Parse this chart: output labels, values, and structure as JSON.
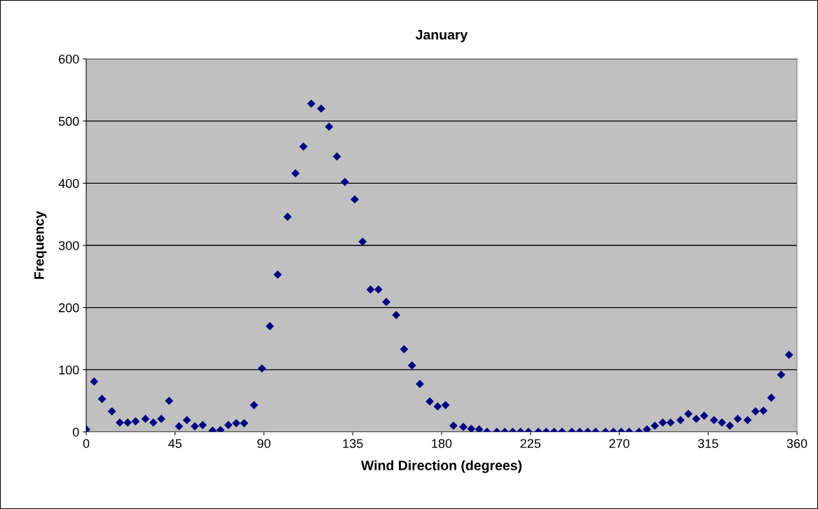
{
  "chart_data": {
    "type": "scatter",
    "title": "January",
    "xlabel": "Wind Direction (degrees)",
    "ylabel": "Frequency",
    "x": [
      0,
      4,
      8,
      13,
      17,
      21,
      25,
      30,
      34,
      38,
      42,
      47,
      51,
      55,
      59,
      64,
      68,
      72,
      76,
      80,
      85,
      89,
      93,
      97,
      102,
      106,
      110,
      114,
      119,
      123,
      127,
      131,
      136,
      140,
      144,
      148,
      152,
      157,
      161,
      165,
      169,
      174,
      178,
      182,
      186,
      191,
      195,
      199,
      203,
      208,
      212,
      216,
      220,
      224,
      229,
      233,
      237,
      241,
      246,
      250,
      254,
      258,
      263,
      267,
      271,
      275,
      280,
      284,
      288,
      292,
      296,
      301,
      305,
      309,
      313,
      318,
      322,
      326,
      330,
      335,
      339,
      343,
      347,
      352,
      356
    ],
    "series": [
      {
        "color": "#000080",
        "values": [
          4,
          81,
          53,
          33,
          15,
          15,
          17,
          21,
          15,
          21,
          50,
          9,
          19,
          9,
          11,
          2,
          3,
          11,
          14,
          14,
          43,
          102,
          170,
          253,
          346,
          416,
          459,
          528,
          520,
          491,
          443,
          402,
          374,
          306,
          229,
          229,
          209,
          188,
          133,
          107,
          77,
          49,
          41,
          43,
          10,
          8,
          5,
          4,
          0,
          0,
          0,
          0,
          0,
          0,
          0,
          0,
          0,
          0,
          0,
          0,
          0,
          0,
          0,
          0,
          0,
          0,
          0,
          4,
          10,
          15,
          15,
          19,
          29,
          21,
          26,
          19,
          15,
          10,
          21,
          19,
          33,
          34,
          55,
          92,
          124
        ]
      }
    ],
    "xlim": [
      0,
      360
    ],
    "xticks": [
      0,
      45,
      90,
      135,
      180,
      225,
      270,
      315,
      360
    ],
    "ylim": [
      0,
      600
    ],
    "yticks": [
      0,
      100,
      200,
      300,
      400,
      500,
      600
    ],
    "grid": "y",
    "marker": "diamond"
  }
}
